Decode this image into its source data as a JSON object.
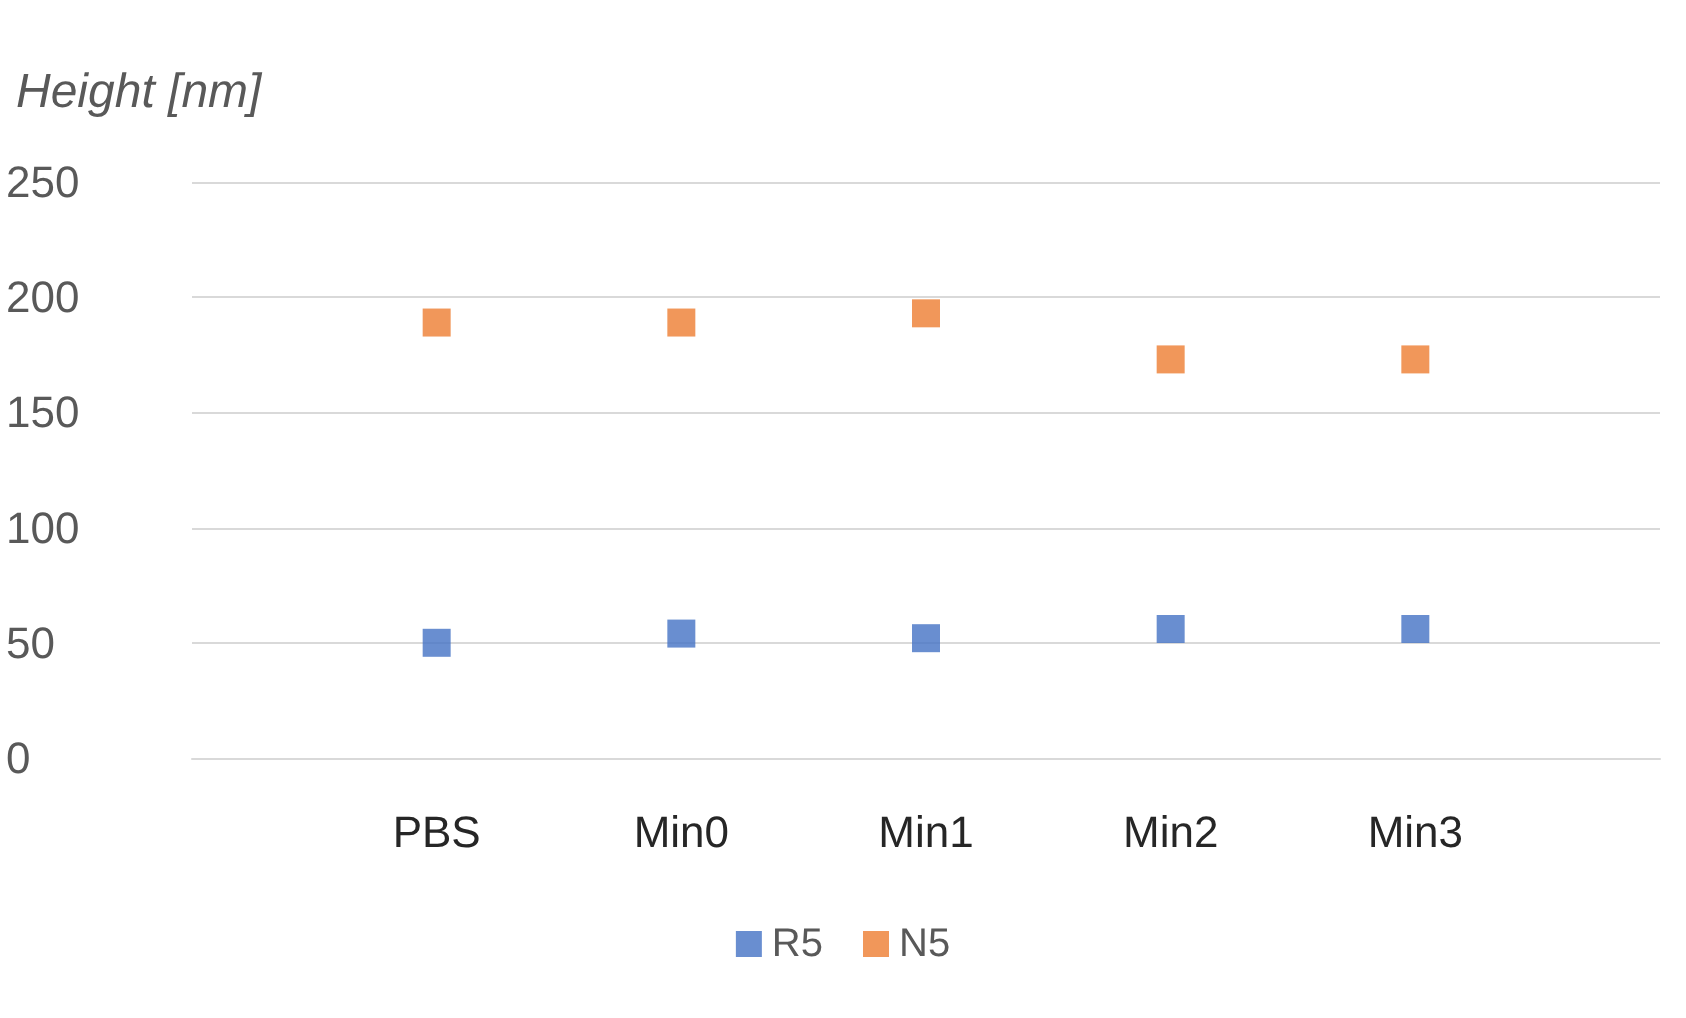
{
  "chart_data": {
    "type": "scatter",
    "ylabel": "Height [nm]",
    "categories": [
      null,
      "PBS",
      "Min0",
      "Min1",
      "Min2",
      "Min3",
      null
    ],
    "series": [
      {
        "name": "R5",
        "color": "#4472c4",
        "values": [
          null,
          50,
          54,
          52,
          56,
          56,
          null
        ]
      },
      {
        "name": "N5",
        "color": "#ed7d31",
        "values": [
          null,
          189,
          189,
          193,
          173,
          173,
          null
        ]
      }
    ],
    "ylim": [
      0,
      250
    ],
    "yticks": [
      0,
      50,
      100,
      150,
      200,
      250
    ],
    "grid": "y",
    "legend": "bottom",
    "marker": "square"
  }
}
